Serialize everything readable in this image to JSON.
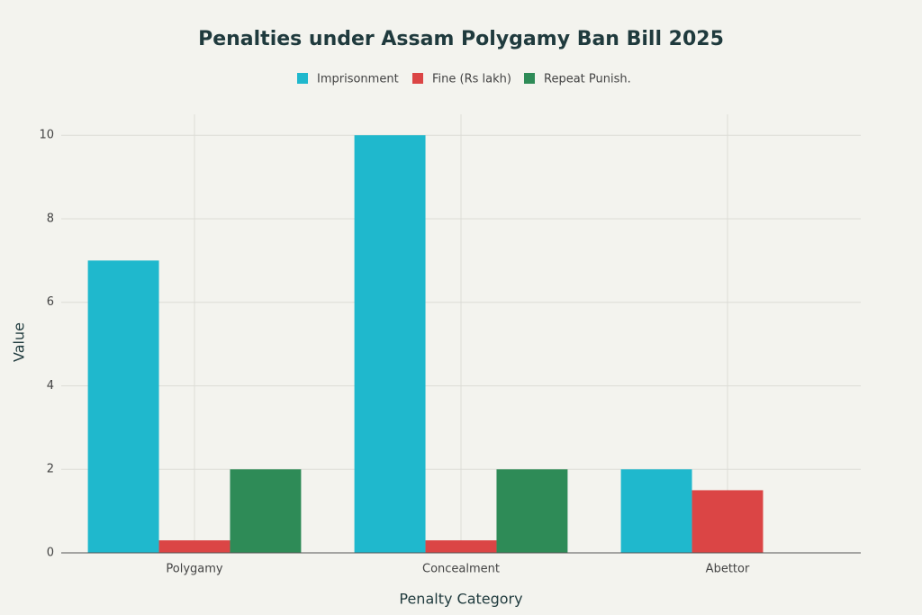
{
  "chart_data": {
    "type": "bar",
    "title": "Penalties under Assam Polygamy Ban Bill 2025",
    "x_label": "Penalty Category",
    "y_label": "Value",
    "categories": [
      "Polygamy",
      "Concealment",
      "Abettor"
    ],
    "series": [
      {
        "name": "Imprisonment",
        "color": "#1fb8cd",
        "values": [
          7,
          10,
          2
        ]
      },
      {
        "name": "Fine (Rs lakh)",
        "color": "#db4545",
        "values": [
          0.3,
          0.3,
          1.5
        ]
      },
      {
        "name": "Repeat Punish.",
        "color": "#2e8b57",
        "values": [
          2,
          2,
          null
        ]
      }
    ],
    "ylim": [
      0,
      10.5
    ],
    "yticks": [
      0,
      2,
      4,
      6,
      8,
      10
    ],
    "grid": true
  }
}
